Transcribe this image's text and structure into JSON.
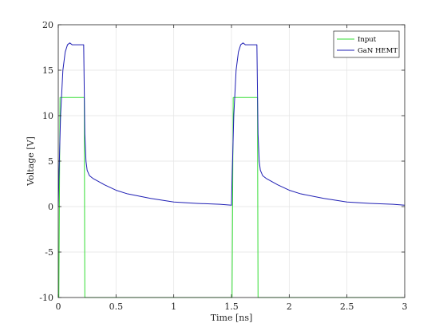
{
  "chart_data": {
    "type": "line",
    "title": "",
    "xlabel": "Time [ns]",
    "ylabel": "Voltage [V]",
    "xlim": [
      0,
      3
    ],
    "ylim": [
      -10,
      20
    ],
    "xticks": [
      0,
      0.5,
      1,
      1.5,
      2,
      2.5,
      3
    ],
    "xtick_labels": [
      "0",
      "0.5",
      "1",
      "1.5",
      "2",
      "2.5",
      "3"
    ],
    "yticks": [
      -10,
      -5,
      0,
      5,
      10,
      15,
      20
    ],
    "ytick_labels": [
      "-10",
      "-5",
      "0",
      "5",
      "10",
      "15",
      "20"
    ],
    "grid": true,
    "legend_position": "top-right",
    "series": [
      {
        "name": "Input",
        "color": "#33dd33",
        "x": [
          0,
          0.005,
          0.015,
          0.22,
          0.225,
          0.23,
          1.5,
          1.505,
          1.515,
          1.72,
          1.725,
          1.73,
          3
        ],
        "y": [
          -10,
          -10,
          12,
          12,
          12,
          -10,
          -10,
          -10,
          12,
          12,
          12,
          -10,
          -10
        ]
      },
      {
        "name": "GaN HEMT",
        "color": "#1f1fb4",
        "x": [
          0,
          0.005,
          0.02,
          0.04,
          0.06,
          0.08,
          0.1,
          0.12,
          0.15,
          0.2,
          0.22,
          0.23,
          0.24,
          0.25,
          0.27,
          0.3,
          0.4,
          0.5,
          0.6,
          0.8,
          1.0,
          1.2,
          1.4,
          1.5,
          1.505,
          1.52,
          1.54,
          1.56,
          1.58,
          1.6,
          1.62,
          1.65,
          1.7,
          1.72,
          1.73,
          1.74,
          1.75,
          1.77,
          1.8,
          1.9,
          2.0,
          2.1,
          2.3,
          2.5,
          2.7,
          2.9,
          3.0
        ],
        "y": [
          0,
          3,
          10,
          15,
          17,
          17.8,
          18,
          17.8,
          17.8,
          17.8,
          17.8,
          8,
          5,
          4,
          3.4,
          3.1,
          2.4,
          1.8,
          1.4,
          0.9,
          0.5,
          0.35,
          0.25,
          0.15,
          3,
          10,
          15,
          17,
          17.8,
          18,
          17.8,
          17.8,
          17.8,
          17.8,
          8,
          5,
          4,
          3.4,
          3.1,
          2.4,
          1.8,
          1.4,
          0.9,
          0.5,
          0.35,
          0.25,
          0.15
        ]
      }
    ]
  }
}
